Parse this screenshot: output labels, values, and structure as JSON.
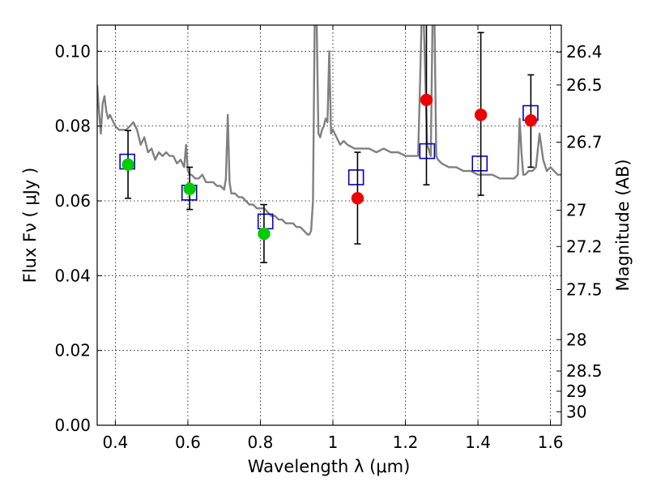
{
  "chart_data": {
    "type": "scatter",
    "xlabel": "Wavelength  λ (μm)",
    "ylabel": "Flux  Fν  ( μJy )",
    "y2label": "Magnitude (AB)",
    "xlim": [
      0.35,
      1.63
    ],
    "ylim": [
      0.0,
      0.107
    ],
    "grid": true,
    "x_ticks": [
      0.4,
      0.6,
      0.8,
      1.0,
      1.2,
      1.4,
      1.6
    ],
    "x_tick_labels": [
      "0.4",
      "0.6",
      "0.8",
      "1",
      "1.2",
      "1.4",
      "1.6"
    ],
    "y_ticks": [
      0.0,
      0.02,
      0.04,
      0.06,
      0.08,
      0.1
    ],
    "y_tick_labels": [
      "0.00",
      "0.02",
      "0.04",
      "0.06",
      "0.08",
      "0.10"
    ],
    "y2_ticks": [
      {
        "label": "26.4",
        "flux": 0.0998
      },
      {
        "label": "26.5",
        "flux": 0.091
      },
      {
        "label": "26.7",
        "flux": 0.0757
      },
      {
        "label": "27",
        "flux": 0.0575
      },
      {
        "label": "27.2",
        "flux": 0.0478
      },
      {
        "label": "27.5",
        "flux": 0.0363
      },
      {
        "label": "28",
        "flux": 0.0229
      },
      {
        "label": "28.5",
        "flux": 0.0145
      },
      {
        "label": "29",
        "flux": 0.0091
      },
      {
        "label": "30",
        "flux": 0.0036
      }
    ],
    "series": [
      {
        "type": "line",
        "color": "#808080",
        "x": [
          0.35,
          0.355,
          0.36,
          0.365,
          0.37,
          0.375,
          0.38,
          0.385,
          0.39,
          0.395,
          0.4,
          0.41,
          0.42,
          0.43,
          0.44,
          0.45,
          0.46,
          0.47,
          0.48,
          0.49,
          0.5,
          0.51,
          0.52,
          0.53,
          0.54,
          0.55,
          0.56,
          0.57,
          0.58,
          0.59,
          0.595,
          0.6,
          0.605,
          0.61,
          0.62,
          0.63,
          0.64,
          0.65,
          0.66,
          0.67,
          0.68,
          0.69,
          0.7,
          0.705,
          0.71,
          0.715,
          0.72,
          0.73,
          0.74,
          0.75,
          0.76,
          0.77,
          0.78,
          0.79,
          0.8,
          0.81,
          0.82,
          0.83,
          0.84,
          0.85,
          0.86,
          0.87,
          0.88,
          0.89,
          0.9,
          0.91,
          0.92,
          0.93,
          0.935,
          0.94,
          0.945,
          0.95,
          0.955,
          0.96,
          0.965,
          0.97,
          0.975,
          0.98,
          0.985,
          0.99,
          0.995,
          1.0,
          1.005,
          1.01,
          1.02,
          1.03,
          1.04,
          1.06,
          1.08,
          1.1,
          1.12,
          1.14,
          1.16,
          1.18,
          1.2,
          1.22,
          1.235,
          1.24,
          1.245,
          1.25,
          1.26,
          1.27,
          1.275,
          1.28,
          1.285,
          1.29,
          1.3,
          1.32,
          1.34,
          1.36,
          1.38,
          1.4,
          1.42,
          1.44,
          1.46,
          1.48,
          1.5,
          1.51,
          1.515,
          1.52,
          1.525,
          1.53,
          1.54,
          1.55,
          1.56,
          1.57,
          1.58,
          1.59,
          1.6,
          1.61,
          1.62,
          1.63
        ],
        "y": [
          0.091,
          0.084,
          0.078,
          0.086,
          0.088,
          0.084,
          0.082,
          0.083,
          0.082,
          0.081,
          0.08,
          0.079,
          0.079,
          0.079,
          0.08,
          0.081,
          0.079,
          0.075,
          0.077,
          0.073,
          0.074,
          0.071,
          0.073,
          0.072,
          0.073,
          0.072,
          0.072,
          0.07,
          0.071,
          0.069,
          0.075,
          0.068,
          0.067,
          0.067,
          0.066,
          0.066,
          0.067,
          0.065,
          0.065,
          0.065,
          0.064,
          0.064,
          0.063,
          0.066,
          0.083,
          0.065,
          0.062,
          0.062,
          0.061,
          0.061,
          0.06,
          0.059,
          0.059,
          0.058,
          0.058,
          0.058,
          0.057,
          0.056,
          0.056,
          0.055,
          0.055,
          0.054,
          0.054,
          0.054,
          0.053,
          0.053,
          0.052,
          0.051,
          0.051,
          0.052,
          0.06,
          0.11,
          0.11,
          0.078,
          0.077,
          0.079,
          0.08,
          0.082,
          0.081,
          0.1,
          0.078,
          0.079,
          0.078,
          0.077,
          0.075,
          0.076,
          0.075,
          0.074,
          0.074,
          0.074,
          0.073,
          0.074,
          0.073,
          0.073,
          0.072,
          0.072,
          0.072,
          0.09,
          0.11,
          0.11,
          0.075,
          0.072,
          0.11,
          0.11,
          0.072,
          0.071,
          0.07,
          0.069,
          0.069,
          0.068,
          0.068,
          0.067,
          0.067,
          0.067,
          0.066,
          0.066,
          0.066,
          0.067,
          0.082,
          0.073,
          0.067,
          0.067,
          0.068,
          0.068,
          0.069,
          0.078,
          0.071,
          0.068,
          0.069,
          0.068,
          0.067,
          0.067
        ]
      },
      {
        "type": "square",
        "color": "#0000cc",
        "x": [
          0.433,
          0.604,
          0.814,
          1.064,
          1.26,
          1.405,
          1.545
        ],
        "y": [
          0.0705,
          0.0622,
          0.0545,
          0.0663,
          0.0733,
          0.07,
          0.0835
        ]
      },
      {
        "type": "errorbar",
        "color": "#000000",
        "x": [
          0.435,
          0.605,
          0.81,
          1.068,
          1.258,
          1.408,
          1.546
        ],
        "low": [
          0.0607,
          0.0577,
          0.0435,
          0.0485,
          0.0643,
          0.0615,
          0.069
        ],
        "high": [
          0.0788,
          0.069,
          0.059,
          0.073,
          0.108,
          0.105,
          0.0937
        ]
      },
      {
        "type": "point",
        "color": "#00cc00",
        "x": [
          0.435,
          0.605,
          0.81
        ],
        "y": [
          0.0697,
          0.0632,
          0.0512
        ]
      },
      {
        "type": "point",
        "color": "#ee0000",
        "x": [
          1.068,
          1.258,
          1.408,
          1.546
        ],
        "y": [
          0.0607,
          0.087,
          0.083,
          0.0815
        ]
      }
    ]
  }
}
